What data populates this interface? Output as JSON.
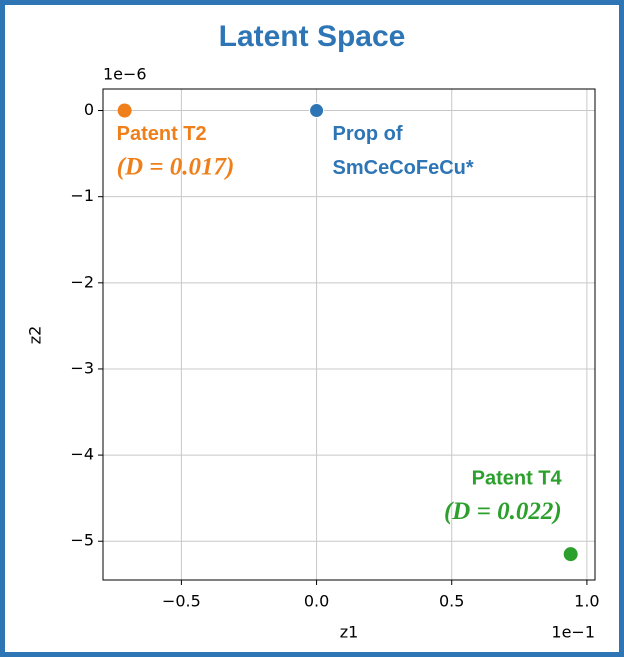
{
  "chart_data": {
    "type": "scatter",
    "title": "Latent Space",
    "xlabel": "z1",
    "ylabel": "z2",
    "x_offset": "1e−1",
    "y_offset": "1e−6",
    "xlim": [
      -0.79,
      1.03
    ],
    "ylim": [
      -5.45,
      0.25
    ],
    "xticks": [
      {
        "value": -0.5,
        "label": "−0.5"
      },
      {
        "value": 0,
        "label": "0.0"
      },
      {
        "value": 0.5,
        "label": "0.5"
      },
      {
        "value": 1,
        "label": "1.0"
      }
    ],
    "yticks": [
      0,
      {
        "value": -1,
        "label": "−1"
      },
      {
        "value": -2,
        "label": "−2"
      },
      {
        "value": -3,
        "label": "−3"
      },
      {
        "value": -4,
        "label": "−4"
      },
      {
        "value": -5,
        "label": "−5"
      }
    ],
    "grid": true,
    "series": [
      {
        "label_lines": [
          "Patent T2",
          "(D = 0.017)"
        ],
        "color": "#ef7f1a",
        "x": [
          -0.71
        ],
        "values": [
          0
        ]
      },
      {
        "label_lines": [
          "Prop of",
          "SmCeCoFeCu*"
        ],
        "color": "#2e75b6",
        "x": [
          0
        ],
        "values": [
          0
        ]
      },
      {
        "label_lines": [
          "Patent T4",
          "(D = 0.022)"
        ],
        "color": "#2ca02c",
        "x": [
          0.94
        ],
        "values": [
          -5.15
        ]
      }
    ]
  }
}
